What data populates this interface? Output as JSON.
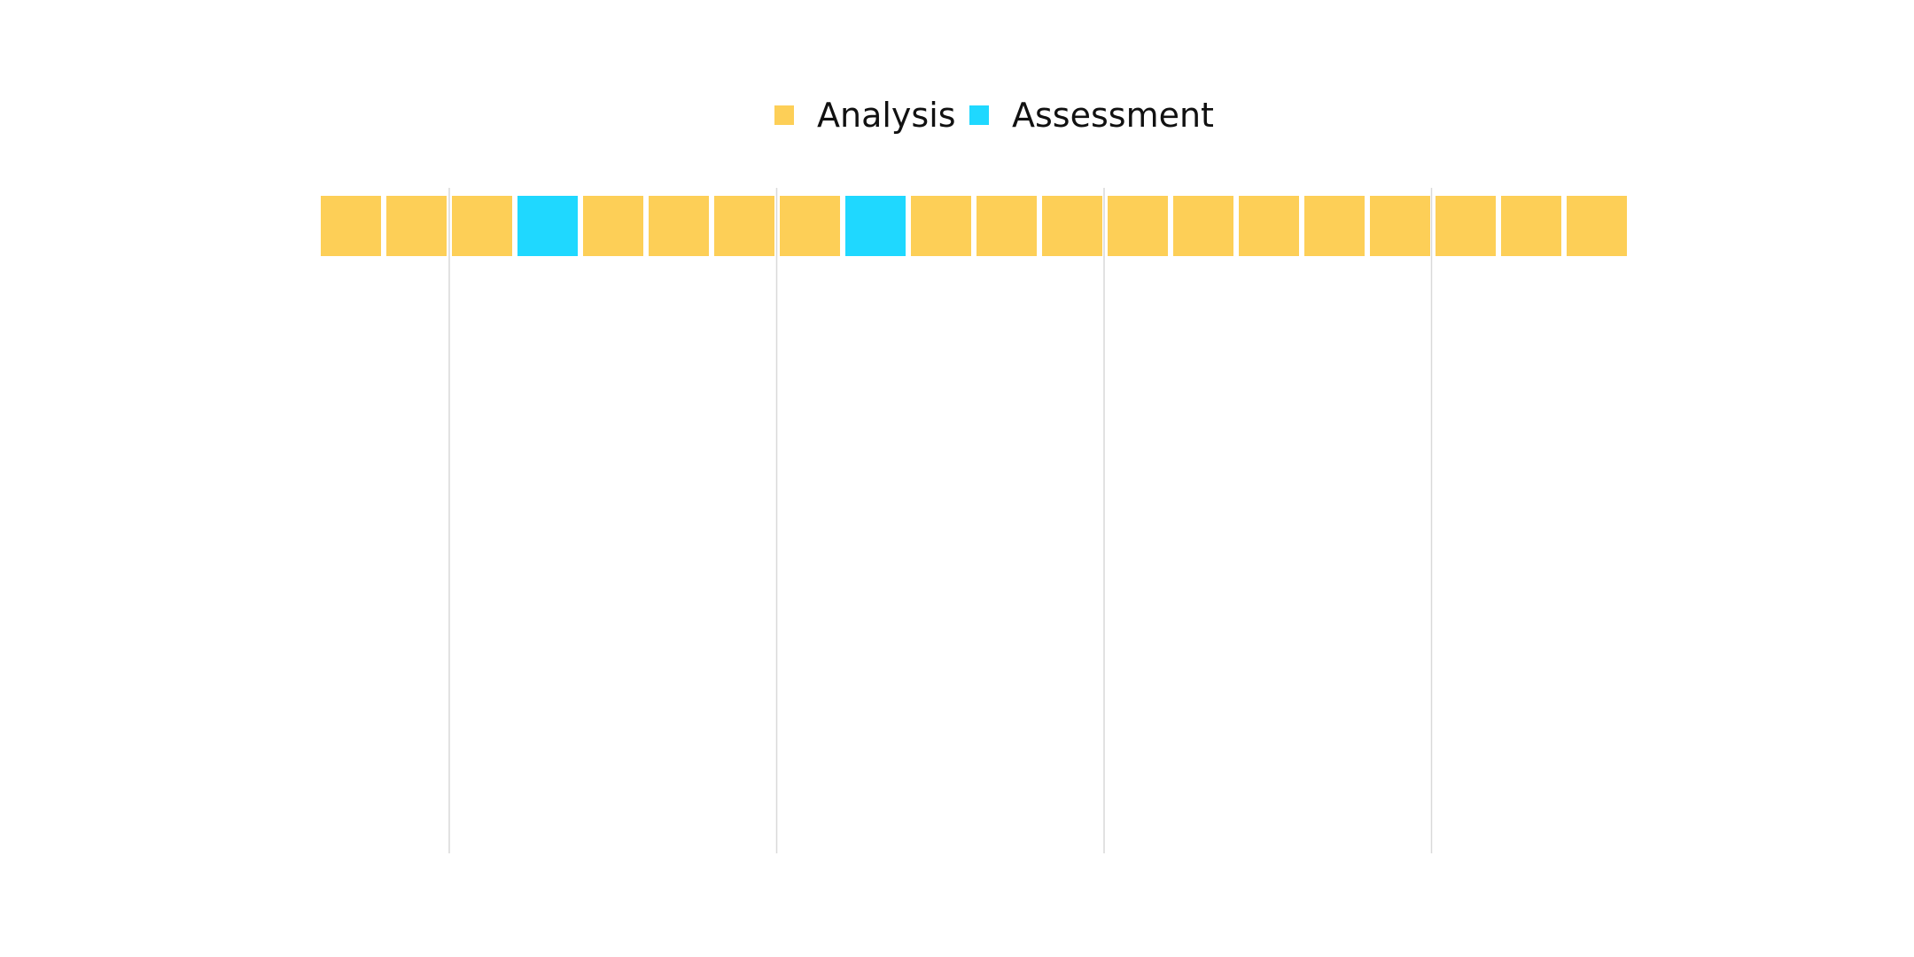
{
  "chart_data": {
    "type": "waffle",
    "legend": {
      "placement": "top-center",
      "items": [
        {
          "label": "Analysis",
          "color": "#FDCF57"
        },
        {
          "label": "Assessment",
          "color": "#1FD8FF"
        }
      ]
    },
    "cells": [
      "Analysis",
      "Analysis",
      "Analysis",
      "Assessment",
      "Analysis",
      "Analysis",
      "Analysis",
      "Analysis",
      "Assessment",
      "Analysis",
      "Analysis",
      "Analysis",
      "Analysis",
      "Analysis",
      "Analysis",
      "Analysis",
      "Analysis",
      "Analysis",
      "Analysis",
      "Analysis"
    ],
    "counts": {
      "Analysis": 18,
      "Assessment": 2
    },
    "grid": {
      "vertical_lines": 4,
      "color": "#d9d9d9"
    }
  }
}
